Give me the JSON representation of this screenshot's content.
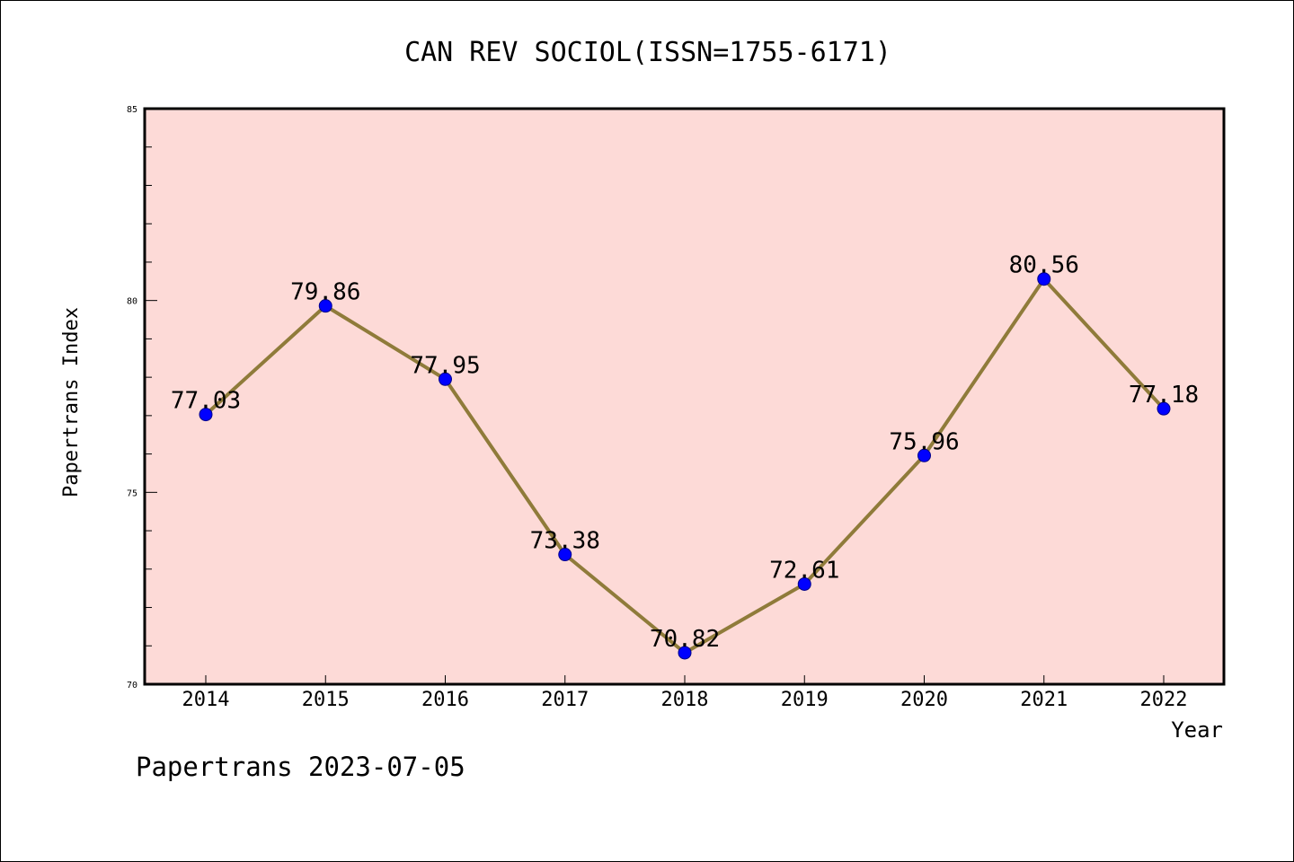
{
  "chart_data": {
    "type": "line",
    "title": "CAN REV SOCIOL(ISSN=1755-6171)",
    "xlabel": "Year",
    "ylabel": "Papertrans Index",
    "categories": [
      "2014",
      "2015",
      "2016",
      "2017",
      "2018",
      "2019",
      "2020",
      "2021",
      "2022"
    ],
    "series": [
      {
        "values": [
          77.03,
          79.86,
          77.95,
          73.38,
          70.82,
          72.61,
          75.96,
          80.56,
          77.18
        ],
        "labels": [
          "77.03",
          "79.86",
          "77.95",
          "73.38",
          "70.82",
          "72.61",
          "75.96",
          "80.56",
          "77.18"
        ]
      }
    ],
    "ylim": [
      70,
      85
    ],
    "yticks": [
      "70",
      "75",
      "80",
      "85"
    ],
    "grid": false,
    "legend": "none",
    "colors": {
      "plot_background": "#fddad7",
      "line": "#8f7b3a",
      "marker": "#0000ff"
    }
  },
  "footer": {
    "text": "Papertrans 2023-07-05"
  }
}
